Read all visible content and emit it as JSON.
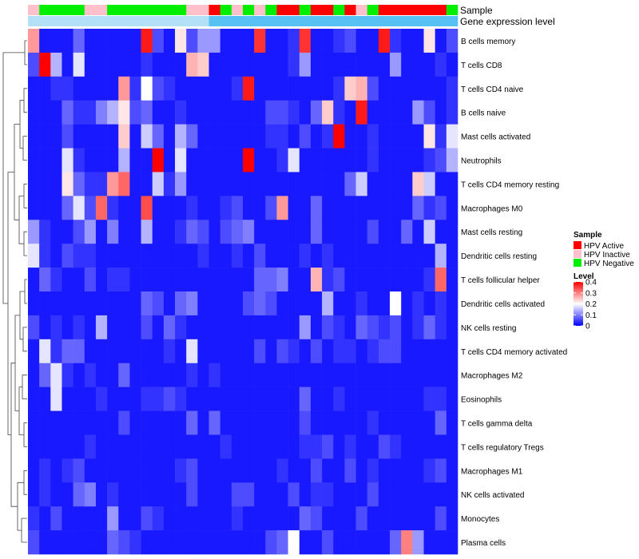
{
  "chart_data": {
    "type": "heatmap",
    "title": "",
    "annotation_tracks": [
      {
        "label": "Sample",
        "values": [
          "HPV Inactive",
          "HPV Negative",
          "HPV Negative",
          "HPV Negative",
          "HPV Negative",
          "HPV Inactive",
          "HPV Inactive",
          "HPV Negative",
          "HPV Negative",
          "HPV Negative",
          "HPV Negative",
          "HPV Negative",
          "HPV Negative",
          "HPV Negative",
          "HPV Inactive",
          "HPV Inactive",
          "HPV Active",
          "HPV Negative",
          "HPV Inactive",
          "HPV Negative",
          "HPV Inactive",
          "HPV Negative",
          "HPV Active",
          "HPV Active",
          "HPV Negative",
          "HPV Active",
          "HPV Active",
          "HPV Negative",
          "HPV Active",
          "HPV Inactive",
          "HPV Negative",
          "HPV Active",
          "HPV Active",
          "HPV Active",
          "HPV Active",
          "HPV Active",
          "HPV Active",
          "HPV Negative"
        ]
      },
      {
        "label": "Gene expression level",
        "values": [
          "low",
          "low",
          "low",
          "low",
          "low",
          "low",
          "low",
          "low",
          "low",
          "low",
          "low",
          "low",
          "low",
          "low",
          "low",
          "low",
          "high",
          "high",
          "high",
          "high",
          "high",
          "high",
          "high",
          "high",
          "high",
          "high",
          "high",
          "high",
          "high",
          "high",
          "high",
          "high",
          "high",
          "high",
          "high",
          "high",
          "high",
          "high"
        ]
      }
    ],
    "rows": [
      "B cells memory",
      "T cells CD8",
      "T cells CD4 naive",
      "B cells naive",
      "Mast cells activated",
      "Neutrophils",
      "T cells CD4 memory resting",
      "Macrophages M0",
      "Mast cells resting",
      "Dendritic cells resting",
      "T cells follicular helper",
      "Dendritic cells activated",
      "NK cells resting",
      "T cells CD4 memory activated",
      "Macrophages M2",
      "Eosinophils",
      "T cells gamma delta",
      "T cells regulatory  Tregs",
      "Macrophages M1",
      "NK cells activated",
      "Monocytes",
      "Plasma cells"
    ],
    "values": [
      [
        0.28,
        0.02,
        0.02,
        0.02,
        0.08,
        0.02,
        0.02,
        0.02,
        0.02,
        0.02,
        0.38,
        0.06,
        0.02,
        0.22,
        0.06,
        0.12,
        0.12,
        0.02,
        0.02,
        0.02,
        0.36,
        0.02,
        0.02,
        0.04,
        0.36,
        0.02,
        0.02,
        0.04,
        0.06,
        0.02,
        0.02,
        0.38,
        0.04,
        0.02,
        0.02,
        0.22,
        0.02,
        0.06
      ],
      [
        0.06,
        0.42,
        0.14,
        0.02,
        0.18,
        0.02,
        0.02,
        0.02,
        0.02,
        0.02,
        0.04,
        0.02,
        0.02,
        0.02,
        0.26,
        0.24,
        0.02,
        0.02,
        0.02,
        0.02,
        0.02,
        0.02,
        0.02,
        0.04,
        0.12,
        0.02,
        0.02,
        0.02,
        0.02,
        0.02,
        0.02,
        0.02,
        0.12,
        0.02,
        0.02,
        0.02,
        0.04,
        0.02
      ],
      [
        0.02,
        0.02,
        0.04,
        0.04,
        0.02,
        0.02,
        0.02,
        0.02,
        0.28,
        0.04,
        0.2,
        0.06,
        0.04,
        0.02,
        0.02,
        0.02,
        0.02,
        0.02,
        0.04,
        0.38,
        0.02,
        0.02,
        0.02,
        0.02,
        0.02,
        0.02,
        0.02,
        0.04,
        0.24,
        0.26,
        0.06,
        0.02,
        0.02,
        0.02,
        0.02,
        0.02,
        0.02,
        0.04
      ],
      [
        0.02,
        0.02,
        0.02,
        0.08,
        0.04,
        0.04,
        0.1,
        0.14,
        0.22,
        0.06,
        0.08,
        0.02,
        0.02,
        0.04,
        0.02,
        0.02,
        0.02,
        0.02,
        0.02,
        0.02,
        0.02,
        0.06,
        0.06,
        0.04,
        0.02,
        0.08,
        0.24,
        0.04,
        0.02,
        0.38,
        0.02,
        0.02,
        0.02,
        0.02,
        0.12,
        0.06,
        0.02,
        0.04
      ],
      [
        0.02,
        0.02,
        0.02,
        0.06,
        0.02,
        0.02,
        0.02,
        0.02,
        0.24,
        0.02,
        0.16,
        0.08,
        0.02,
        0.14,
        0.08,
        0.02,
        0.02,
        0.02,
        0.02,
        0.02,
        0.02,
        0.04,
        0.04,
        0.02,
        0.06,
        0.02,
        0.04,
        0.42,
        0.02,
        0.02,
        0.04,
        0.02,
        0.02,
        0.02,
        0.02,
        0.22,
        0.04,
        0.18
      ],
      [
        0.02,
        0.02,
        0.02,
        0.18,
        0.04,
        0.02,
        0.02,
        0.02,
        0.14,
        0.02,
        0.02,
        0.42,
        0.02,
        0.18,
        0.02,
        0.02,
        0.02,
        0.02,
        0.02,
        0.42,
        0.02,
        0.02,
        0.04,
        0.18,
        0.02,
        0.02,
        0.02,
        0.02,
        0.02,
        0.02,
        0.04,
        0.02,
        0.02,
        0.02,
        0.02,
        0.04,
        0.06,
        0.14
      ],
      [
        0.02,
        0.02,
        0.02,
        0.22,
        0.08,
        0.04,
        0.04,
        0.28,
        0.32,
        0.02,
        0.02,
        0.16,
        0.04,
        0.12,
        0.02,
        0.02,
        0.02,
        0.02,
        0.02,
        0.02,
        0.02,
        0.02,
        0.02,
        0.02,
        0.02,
        0.02,
        0.02,
        0.02,
        0.08,
        0.16,
        0.02,
        0.02,
        0.02,
        0.02,
        0.24,
        0.16,
        0.02,
        0.02
      ],
      [
        0.02,
        0.02,
        0.02,
        0.08,
        0.18,
        0.06,
        0.32,
        0.04,
        0.02,
        0.02,
        0.34,
        0.02,
        0.02,
        0.02,
        0.04,
        0.02,
        0.02,
        0.04,
        0.06,
        0.02,
        0.02,
        0.06,
        0.28,
        0.02,
        0.02,
        0.08,
        0.02,
        0.02,
        0.02,
        0.02,
        0.02,
        0.02,
        0.02,
        0.02,
        0.08,
        0.04,
        0.06,
        0.02
      ],
      [
        0.12,
        0.04,
        0.02,
        0.02,
        0.06,
        0.12,
        0.02,
        0.1,
        0.02,
        0.02,
        0.14,
        0.02,
        0.02,
        0.04,
        0.08,
        0.06,
        0.02,
        0.06,
        0.08,
        0.1,
        0.02,
        0.02,
        0.02,
        0.02,
        0.02,
        0.08,
        0.02,
        0.02,
        0.02,
        0.02,
        0.06,
        0.02,
        0.02,
        0.08,
        0.02,
        0.16,
        0.02,
        0.02
      ],
      [
        0.18,
        0.04,
        0.02,
        0.06,
        0.04,
        0.04,
        0.02,
        0.02,
        0.02,
        0.02,
        0.02,
        0.02,
        0.02,
        0.02,
        0.02,
        0.04,
        0.02,
        0.02,
        0.04,
        0.02,
        0.06,
        0.02,
        0.02,
        0.02,
        0.04,
        0.02,
        0.04,
        0.02,
        0.02,
        0.02,
        0.02,
        0.02,
        0.02,
        0.02,
        0.02,
        0.02,
        0.14,
        0.02
      ],
      [
        0.02,
        0.08,
        0.04,
        0.02,
        0.02,
        0.06,
        0.02,
        0.04,
        0.04,
        0.02,
        0.02,
        0.02,
        0.02,
        0.02,
        0.02,
        0.02,
        0.02,
        0.02,
        0.02,
        0.02,
        0.08,
        0.08,
        0.1,
        0.02,
        0.02,
        0.26,
        0.04,
        0.06,
        0.02,
        0.02,
        0.02,
        0.02,
        0.02,
        0.02,
        0.02,
        0.04,
        0.32,
        0.02
      ],
      [
        0.02,
        0.02,
        0.02,
        0.02,
        0.02,
        0.02,
        0.02,
        0.02,
        0.02,
        0.02,
        0.08,
        0.06,
        0.02,
        0.08,
        0.1,
        0.02,
        0.02,
        0.02,
        0.02,
        0.06,
        0.08,
        0.06,
        0.02,
        0.02,
        0.02,
        0.02,
        0.14,
        0.02,
        0.02,
        0.04,
        0.02,
        0.02,
        0.2,
        0.02,
        0.04,
        0.02,
        0.04,
        0.02
      ],
      [
        0.06,
        0.02,
        0.04,
        0.02,
        0.04,
        0.02,
        0.14,
        0.02,
        0.02,
        0.02,
        0.06,
        0.02,
        0.08,
        0.04,
        0.02,
        0.02,
        0.02,
        0.02,
        0.02,
        0.02,
        0.02,
        0.02,
        0.02,
        0.02,
        0.12,
        0.02,
        0.06,
        0.04,
        0.02,
        0.08,
        0.06,
        0.04,
        0.06,
        0.02,
        0.04,
        0.08,
        0.04,
        0.02
      ],
      [
        0.02,
        0.18,
        0.04,
        0.08,
        0.08,
        0.02,
        0.02,
        0.02,
        0.02,
        0.02,
        0.02,
        0.02,
        0.04,
        0.02,
        0.18,
        0.02,
        0.02,
        0.02,
        0.02,
        0.02,
        0.06,
        0.02,
        0.06,
        0.04,
        0.02,
        0.06,
        0.02,
        0.04,
        0.04,
        0.02,
        0.04,
        0.06,
        0.06,
        0.02,
        0.02,
        0.02,
        0.02,
        0.02
      ],
      [
        0.02,
        0.08,
        0.18,
        0.04,
        0.02,
        0.04,
        0.02,
        0.02,
        0.08,
        0.02,
        0.02,
        0.02,
        0.02,
        0.02,
        0.04,
        0.02,
        0.04,
        0.02,
        0.02,
        0.02,
        0.02,
        0.02,
        0.02,
        0.02,
        0.02,
        0.02,
        0.02,
        0.02,
        0.02,
        0.02,
        0.02,
        0.02,
        0.02,
        0.02,
        0.02,
        0.02,
        0.02,
        0.02
      ],
      [
        0.02,
        0.02,
        0.18,
        0.02,
        0.02,
        0.02,
        0.04,
        0.02,
        0.02,
        0.02,
        0.04,
        0.04,
        0.06,
        0.04,
        0.02,
        0.02,
        0.02,
        0.02,
        0.02,
        0.02,
        0.02,
        0.02,
        0.02,
        0.02,
        0.08,
        0.02,
        0.02,
        0.04,
        0.02,
        0.02,
        0.02,
        0.02,
        0.02,
        0.02,
        0.02,
        0.04,
        0.04,
        0.02
      ],
      [
        0.02,
        0.02,
        0.02,
        0.02,
        0.02,
        0.02,
        0.02,
        0.02,
        0.06,
        0.02,
        0.02,
        0.02,
        0.02,
        0.02,
        0.08,
        0.02,
        0.08,
        0.02,
        0.02,
        0.02,
        0.02,
        0.02,
        0.02,
        0.02,
        0.06,
        0.02,
        0.02,
        0.02,
        0.02,
        0.02,
        0.04,
        0.02,
        0.02,
        0.02,
        0.02,
        0.02,
        0.08,
        0.02
      ],
      [
        0.02,
        0.02,
        0.02,
        0.02,
        0.02,
        0.04,
        0.02,
        0.02,
        0.02,
        0.02,
        0.02,
        0.02,
        0.02,
        0.02,
        0.02,
        0.02,
        0.02,
        0.04,
        0.02,
        0.02,
        0.02,
        0.02,
        0.02,
        0.02,
        0.04,
        0.04,
        0.06,
        0.02,
        0.04,
        0.02,
        0.02,
        0.06,
        0.04,
        0.02,
        0.02,
        0.02,
        0.02,
        0.02
      ],
      [
        0.02,
        0.04,
        0.02,
        0.04,
        0.06,
        0.02,
        0.02,
        0.02,
        0.02,
        0.02,
        0.02,
        0.02,
        0.02,
        0.04,
        0.06,
        0.02,
        0.02,
        0.02,
        0.02,
        0.02,
        0.02,
        0.02,
        0.04,
        0.02,
        0.02,
        0.06,
        0.02,
        0.02,
        0.06,
        0.02,
        0.04,
        0.02,
        0.02,
        0.02,
        0.02,
        0.04,
        0.06,
        0.02
      ],
      [
        0.02,
        0.04,
        0.02,
        0.02,
        0.08,
        0.1,
        0.02,
        0.04,
        0.02,
        0.02,
        0.02,
        0.02,
        0.02,
        0.02,
        0.06,
        0.02,
        0.02,
        0.02,
        0.06,
        0.06,
        0.02,
        0.02,
        0.02,
        0.06,
        0.02,
        0.04,
        0.04,
        0.02,
        0.02,
        0.02,
        0.06,
        0.02,
        0.02,
        0.02,
        0.02,
        0.02,
        0.02,
        0.02
      ],
      [
        0.04,
        0.02,
        0.06,
        0.02,
        0.02,
        0.02,
        0.02,
        0.12,
        0.02,
        0.02,
        0.06,
        0.04,
        0.02,
        0.02,
        0.02,
        0.02,
        0.02,
        0.02,
        0.04,
        0.02,
        0.02,
        0.02,
        0.02,
        0.02,
        0.08,
        0.06,
        0.02,
        0.02,
        0.02,
        0.06,
        0.02,
        0.02,
        0.02,
        0.02,
        0.02,
        0.02,
        0.06,
        0.02
      ],
      [
        0.06,
        0.02,
        0.02,
        0.02,
        0.02,
        0.02,
        0.02,
        0.08,
        0.06,
        0.04,
        0.02,
        0.02,
        0.02,
        0.02,
        0.02,
        0.02,
        0.02,
        0.02,
        0.02,
        0.02,
        0.02,
        0.06,
        0.08,
        0.2,
        0.02,
        0.02,
        0.06,
        0.02,
        0.02,
        0.02,
        0.02,
        0.02,
        0.08,
        0.3,
        0.12,
        0.02,
        0.02,
        0.02
      ]
    ],
    "legend": {
      "placement": "right",
      "sample_title": "Sample",
      "sample_items": [
        {
          "name": "HPV Active",
          "color": "#ff0000"
        },
        {
          "name": "HPV Inactive",
          "color": "#ffc0cb"
        },
        {
          "name": "HPV Negative",
          "color": "#00ee00"
        }
      ],
      "level_title": "Level",
      "level_ticks": [
        "0",
        "0.1",
        "0.2",
        "0.3",
        "0.4"
      ],
      "level_range": [
        0,
        0.4
      ]
    },
    "colors": {
      "low": "#0000ff",
      "mid": "#ffffff",
      "high": "#ff0000",
      "expression_low": "#b3e0f7",
      "expression_high": "#56c1f2"
    },
    "dendrogram": "rows",
    "grid": false
  }
}
